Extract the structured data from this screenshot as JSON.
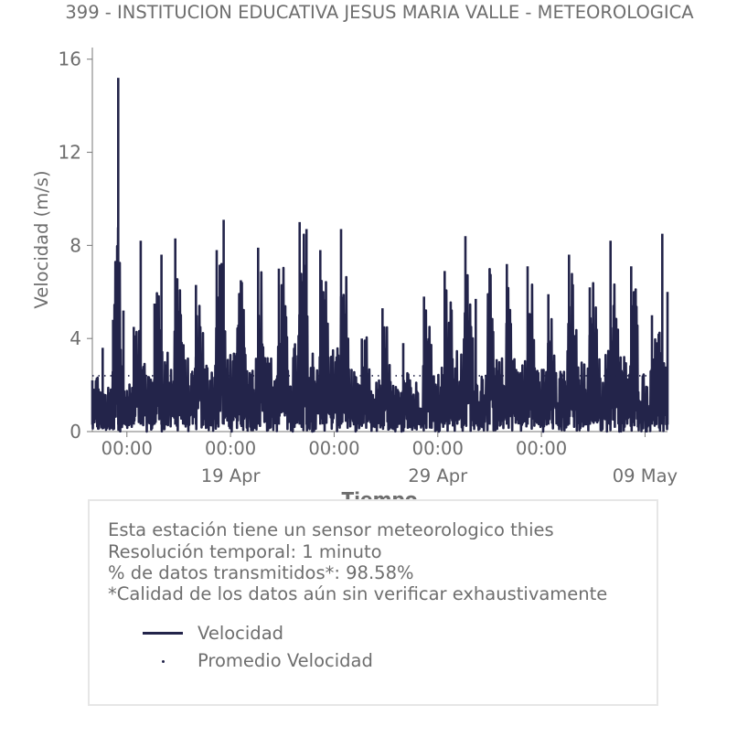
{
  "chart_data": {
    "type": "line",
    "title": "399 - INSTITUCION EDUCATIVA JESUS MARIA VALLE - METEOROLOGICA",
    "xlabel": "Tiempo",
    "ylabel": "Velocidad (m/s)",
    "ylim": [
      0,
      16.5
    ],
    "yticks": [
      0,
      4,
      8,
      12,
      16
    ],
    "x_range": [
      "2024-04-12 08:00",
      "2024-05-10 02:00"
    ],
    "x_tick_labels": [
      {
        "t": "2024-04-14 00:00",
        "major": "00:00",
        "minor": ""
      },
      {
        "t": "2024-04-19 00:00",
        "major": "00:00",
        "minor": "19 Apr"
      },
      {
        "t": "2024-04-24 00:00",
        "major": "00:00",
        "minor": ""
      },
      {
        "t": "2024-04-29 00:00",
        "major": "00:00",
        "minor": "29 Apr"
      },
      {
        "t": "2024-05-04 00:00",
        "major": "00:00",
        "minor": ""
      },
      {
        "t": "2024-05-09 00:00",
        "major": "",
        "minor": "09 May"
      }
    ],
    "grid": false,
    "series": [
      {
        "name": "Velocidad",
        "color": "#23244a",
        "style": "line",
        "peaks": [
          [
            "2024-04-12 08:00",
            2.2
          ],
          [
            "2024-04-12 20:00",
            3.6
          ],
          [
            "2024-04-13 08:00",
            4.8
          ],
          [
            "2024-04-13 14:00",
            15.2
          ],
          [
            "2024-04-13 20:00",
            5.2
          ],
          [
            "2024-04-14 08:00",
            4.5
          ],
          [
            "2024-04-14 16:00",
            8.2
          ],
          [
            "2024-04-15 08:00",
            5.5
          ],
          [
            "2024-04-15 16:00",
            7.6
          ],
          [
            "2024-04-16 08:00",
            8.3
          ],
          [
            "2024-04-17 08:00",
            6.3
          ],
          [
            "2024-04-18 08:00",
            7.8
          ],
          [
            "2024-04-18 16:00",
            9.1
          ],
          [
            "2024-04-19 12:00",
            6.5
          ],
          [
            "2024-04-20 08:00",
            7.9
          ],
          [
            "2024-04-21 08:00",
            7.0
          ],
          [
            "2024-04-22 08:00",
            9.0
          ],
          [
            "2024-04-22 16:00",
            8.7
          ],
          [
            "2024-04-23 08:00",
            7.8
          ],
          [
            "2024-04-24 08:00",
            8.7
          ],
          [
            "2024-04-25 08:00",
            4.0
          ],
          [
            "2024-04-26 08:00",
            5.3
          ],
          [
            "2024-04-27 08:00",
            3.8
          ],
          [
            "2024-04-28 08:00",
            5.8
          ],
          [
            "2024-04-29 08:00",
            6.9
          ],
          [
            "2024-04-30 08:00",
            8.4
          ],
          [
            "2024-04-30 20:00",
            5.7
          ],
          [
            "2024-05-01 12:00",
            7.0
          ],
          [
            "2024-05-02 08:00",
            7.2
          ],
          [
            "2024-05-03 08:00",
            7.1
          ],
          [
            "2024-05-04 08:00",
            5.9
          ],
          [
            "2024-05-05 08:00",
            7.6
          ],
          [
            "2024-05-06 08:00",
            6.2
          ],
          [
            "2024-05-07 08:00",
            8.2
          ],
          [
            "2024-05-08 08:00",
            7.1
          ],
          [
            "2024-05-09 08:00",
            5.0
          ],
          [
            "2024-05-09 20:00",
            8.5
          ],
          [
            "2024-05-10 02:00",
            6.0
          ]
        ]
      },
      {
        "name": "Promedio Velocidad",
        "color": "#23244a",
        "style": "dotted",
        "mean": 2.4
      }
    ]
  },
  "info": {
    "line1": "Esta estación tiene un sensor meteorologico thies",
    "line2": "Resolución temporal: 1 minuto",
    "line3": "% de datos transmitidos*: 98.58%",
    "line4": "*Calidad de los datos aún sin verificar exhaustivamente"
  },
  "legend": {
    "velocidad": "Velocidad",
    "promedio": "Promedio Velocidad"
  }
}
